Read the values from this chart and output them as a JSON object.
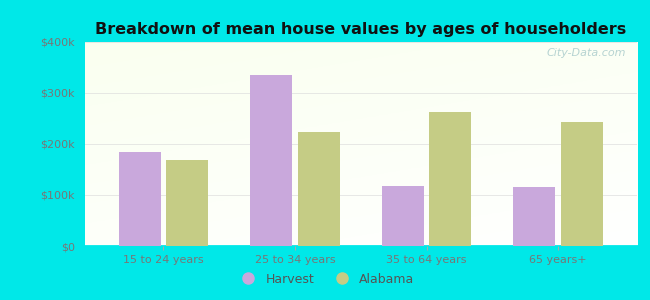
{
  "title": "Breakdown of mean house values by ages of householders",
  "categories": [
    "15 to 24 years",
    "25 to 34 years",
    "35 to 64 years",
    "65 years+"
  ],
  "harvest_values": [
    185000,
    335000,
    118000,
    116000
  ],
  "alabama_values": [
    168000,
    223000,
    263000,
    243000
  ],
  "harvest_color": "#c9a8dc",
  "alabama_color": "#c5cc85",
  "background_color": "#00e8e8",
  "ylim": [
    0,
    400000
  ],
  "yticks": [
    0,
    100000,
    200000,
    300000,
    400000
  ],
  "ytick_labels": [
    "$0",
    "$100k",
    "$200k",
    "$300k",
    "$400k"
  ],
  "bar_width": 0.32,
  "legend_harvest": "Harvest",
  "legend_alabama": "Alabama",
  "watermark": "City-Data.com",
  "grid_color": "#dddddd",
  "tick_label_color": "#777777",
  "title_color": "#111111"
}
